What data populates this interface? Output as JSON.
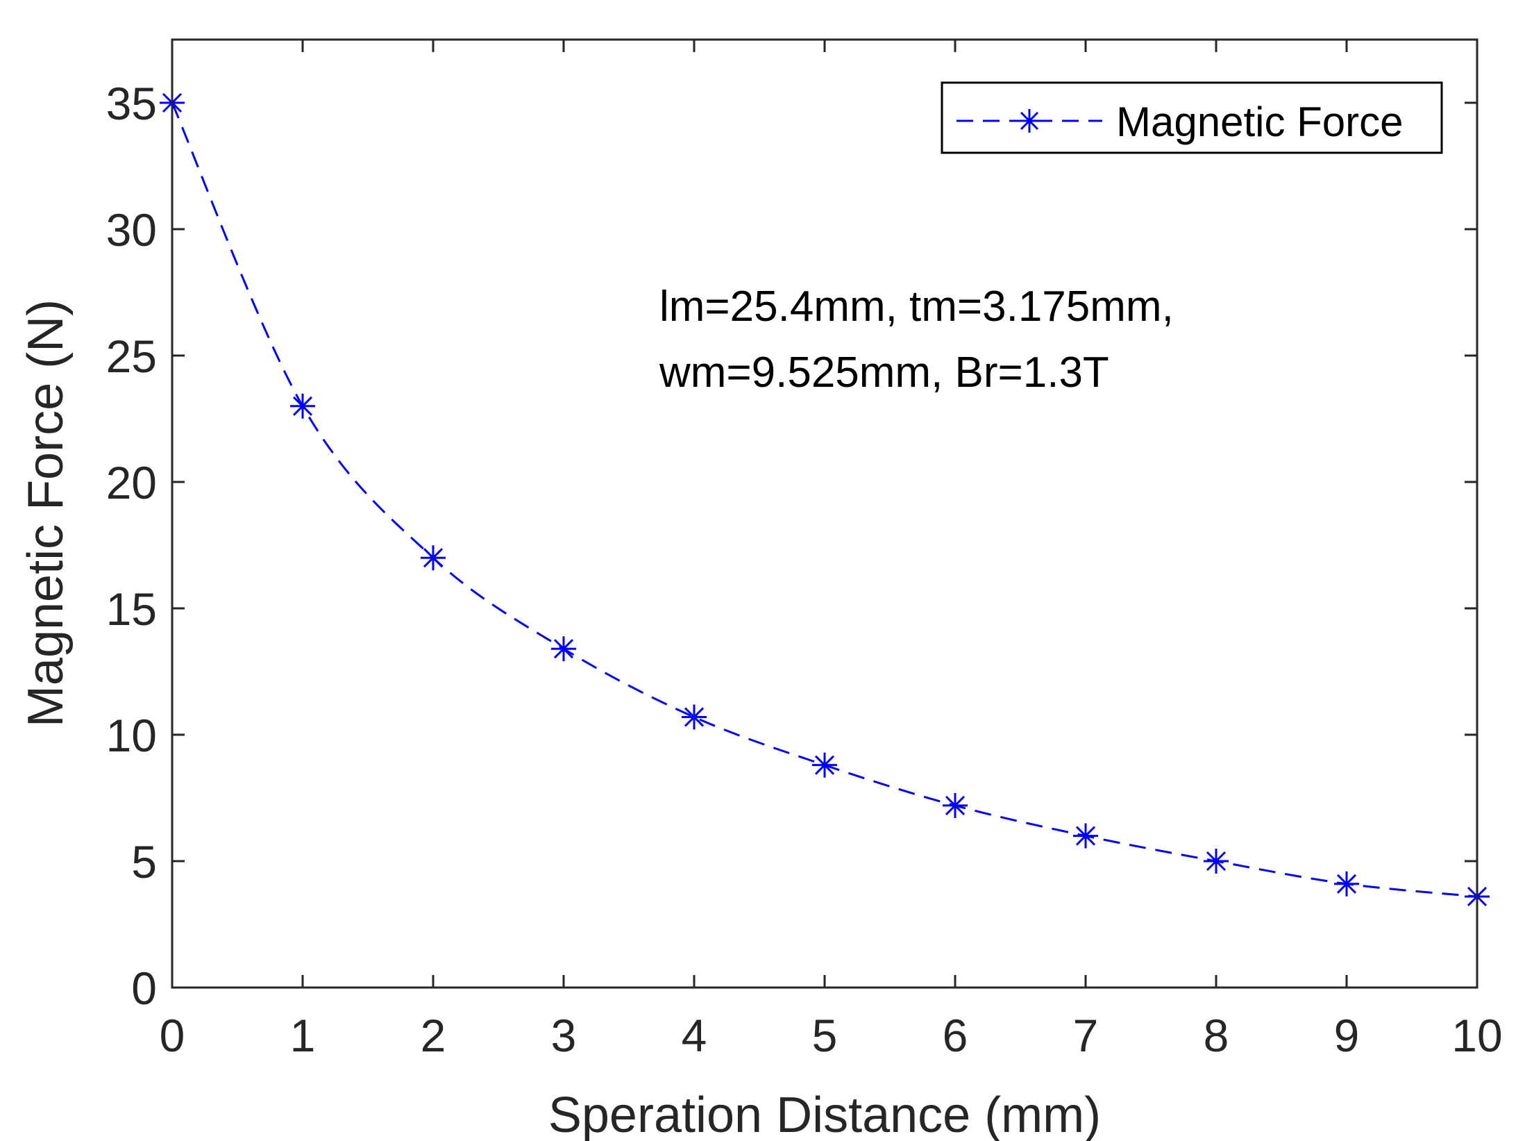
{
  "chart_data": {
    "type": "line",
    "title": "",
    "xlabel": "Speration Distance (mm)",
    "ylabel": "Magnetic Force (N)",
    "xlim": [
      0,
      10
    ],
    "ylim": [
      0,
      37.5
    ],
    "x_ticks": [
      0,
      1,
      2,
      3,
      4,
      5,
      6,
      7,
      8,
      9,
      10
    ],
    "y_ticks": [
      0,
      5,
      10,
      15,
      20,
      25,
      30,
      35
    ],
    "grid": false,
    "legend_position": "top-right",
    "series": [
      {
        "name": "Magnetic Force",
        "color": "#0000ff",
        "line_style": "dashed",
        "marker": "asterisk",
        "x": [
          0,
          1,
          2,
          3,
          4,
          5,
          6,
          7,
          8,
          9,
          10
        ],
        "values": [
          35.0,
          23.0,
          17.0,
          13.4,
          10.7,
          8.8,
          7.2,
          6.0,
          5.0,
          4.1,
          3.6
        ]
      }
    ],
    "annotations": [
      "lm=25.4mm, tm=3.175mm,",
      "wm=9.525mm, Br=1.3T"
    ]
  }
}
